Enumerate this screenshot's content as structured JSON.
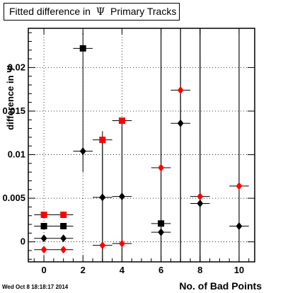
{
  "header": {
    "title_prefix": "Fitted difference in",
    "title_symbol": "Ψ",
    "title_suffix": "Primary Tracks"
  },
  "timestamp": "Wed Oct  8 18:18:17 2014",
  "colors": {
    "black": "#000000",
    "red": "#ff0000"
  },
  "chart_data": {
    "type": "scatter",
    "title": "Fitted difference in Ψ Primary Tracks",
    "xlabel": "No. of Bad Points",
    "ylabel": "difference in Ψ",
    "xlim": [
      -0.8,
      10.8
    ],
    "ylim": [
      -0.0023,
      0.0245
    ],
    "x_ticks": [
      0,
      2,
      4,
      6,
      8,
      10
    ],
    "x_tick_labels": [
      "0",
      "2",
      "4",
      "6",
      "8",
      "10"
    ],
    "y_ticks": [
      0,
      0.005,
      0.01,
      0.015,
      0.02
    ],
    "y_tick_labels": [
      "0",
      "0.005",
      "0.01",
      "0.015",
      "0.02"
    ],
    "grid": true,
    "series": [
      {
        "marker": "square",
        "color": "#000000",
        "points": [
          {
            "x": 0,
            "y": 0.0018,
            "xerr": 0.5,
            "yerr_low": 0.0,
            "yerr_high": 0.0
          },
          {
            "x": 1,
            "y": 0.0018,
            "xerr": 0.5,
            "yerr_low": 0.0,
            "yerr_high": 0.0
          },
          {
            "x": 2,
            "y": 0.0222,
            "xerr": 0.5,
            "yerr_low": 0.0,
            "yerr_high": 0.0
          },
          {
            "x": 6,
            "y": 0.0021,
            "xerr": 0.5,
            "yerr_low": 0.0,
            "yerr_high": 0.0
          }
        ]
      },
      {
        "marker": "square",
        "color": "#ff0000",
        "points": [
          {
            "x": 0,
            "y": 0.0031,
            "xerr": 0.5,
            "yerr_low": 0.0,
            "yerr_high": 0.0
          },
          {
            "x": 1,
            "y": 0.0031,
            "xerr": 0.5,
            "yerr_low": 0.0,
            "yerr_high": 0.0
          },
          {
            "x": 3,
            "y": 0.0117,
            "xerr": 0.5,
            "yerr_low": 0.0,
            "yerr_high": 0.0
          },
          {
            "x": 4,
            "y": 0.0139,
            "xerr": 0.5,
            "yerr_low": 0.0,
            "yerr_high": 0.0
          }
        ]
      },
      {
        "marker": "diamond",
        "color": "#000000",
        "points": [
          {
            "x": 0,
            "y": 0.0004,
            "xerr": 0.5,
            "yerr_low": 0.0,
            "yerr_high": 0.0
          },
          {
            "x": 1,
            "y": 0.0004,
            "xerr": 0.5,
            "yerr_low": 0.0,
            "yerr_high": 0.0
          },
          {
            "x": 2,
            "y": 0.0104,
            "xerr": 0.5,
            "yerr_low": 0.0024,
            "yerr_high": 0.0136
          },
          {
            "x": 3,
            "y": 0.0051,
            "xerr": 0.5,
            "yerr_low": 0.0074,
            "yerr_high": 0.0076
          },
          {
            "x": 4,
            "y": 0.0052,
            "xerr": 0.5,
            "yerr_low": 0.0075,
            "yerr_high": 0.0081
          },
          {
            "x": 6,
            "y": 0.0011,
            "xerr": 0.5,
            "yerr_low": 0.0034,
            "yerr_high": 0.0234
          },
          {
            "x": 7,
            "y": 0.0136,
            "xerr": 0.5,
            "yerr_low": 0.0159,
            "yerr_high": 0.0109
          },
          {
            "x": 8,
            "y": 0.0044,
            "xerr": 0.5,
            "yerr_low": 0.0067,
            "yerr_high": 0.0201
          },
          {
            "x": 10,
            "y": 0.0018,
            "xerr": 0.5,
            "yerr_low": 0.0041,
            "yerr_high": 0.0227
          }
        ]
      },
      {
        "marker": "diamond",
        "color": "#ff0000",
        "points": [
          {
            "x": 0,
            "y": -0.0009,
            "xerr": 0.5,
            "yerr_low": 0.0,
            "yerr_high": 0.0
          },
          {
            "x": 1,
            "y": -0.0009,
            "xerr": 0.5,
            "yerr_low": 0.0,
            "yerr_high": 0.0
          },
          {
            "x": 3,
            "y": -0.0004,
            "xerr": 0.5,
            "yerr_low": 0.0019,
            "yerr_high": 0.0121
          },
          {
            "x": 4,
            "y": -0.0002,
            "xerr": 0.5,
            "yerr_low": 0.0021,
            "yerr_high": 0.0141
          },
          {
            "x": 6,
            "y": 0.0085,
            "xerr": 0.5,
            "yerr_low": 0.0108,
            "yerr_high": 0.016
          },
          {
            "x": 7,
            "y": 0.0174,
            "xerr": 0.5,
            "yerr_low": 0.0197,
            "yerr_high": 0.0071
          },
          {
            "x": 8,
            "y": 0.0052,
            "xerr": 0.5,
            "yerr_low": 0.0075,
            "yerr_high": 0.0193
          },
          {
            "x": 10,
            "y": 0.0064,
            "xerr": 0.5,
            "yerr_low": 0.0087,
            "yerr_high": 0.0181
          }
        ]
      }
    ]
  }
}
